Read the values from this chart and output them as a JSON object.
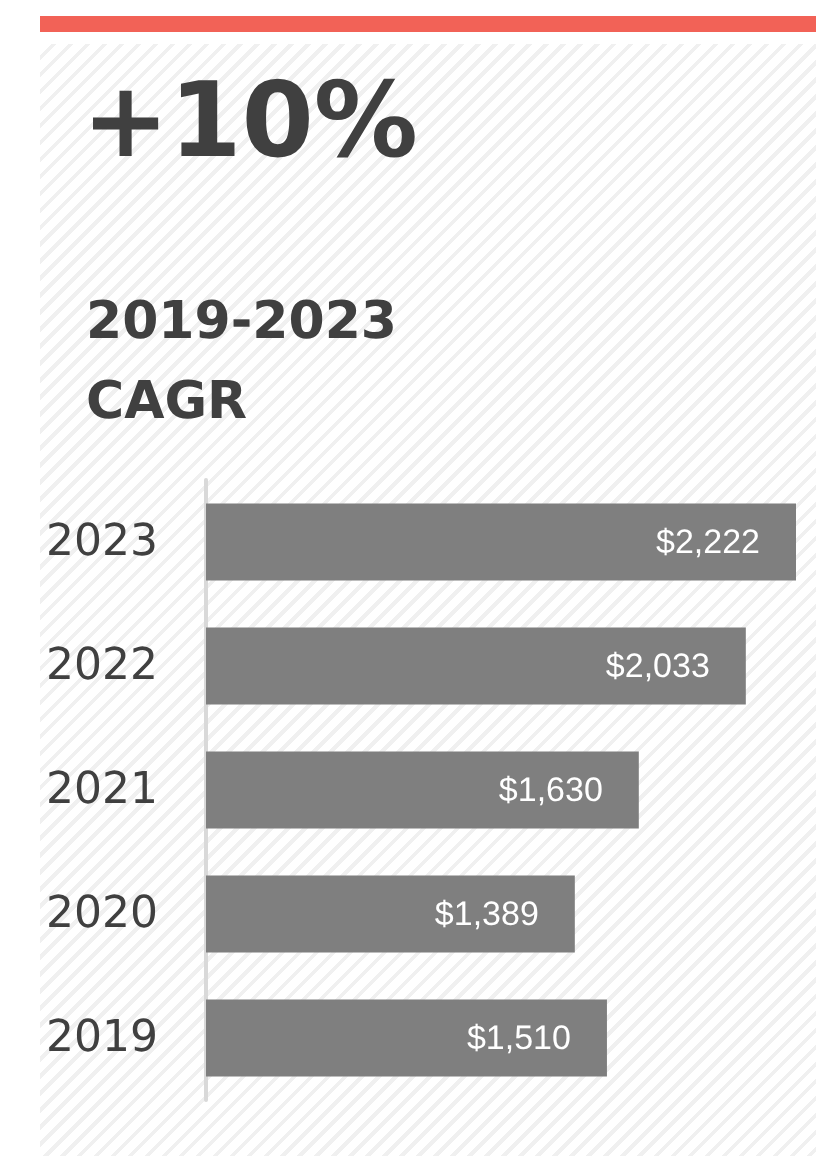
{
  "chart_data": {
    "type": "bar",
    "orientation": "horizontal",
    "title": "+10%",
    "subtitle": "2019-2023\nCAGR",
    "categories": [
      "2023",
      "2022",
      "2021",
      "2020",
      "2019"
    ],
    "values": [
      2222,
      2033,
      1630,
      1389,
      1510
    ],
    "value_labels": [
      "$2,222",
      "$2,033",
      "$1,630",
      "$1,389",
      "$1,510"
    ],
    "color": "#7f7f7f"
  }
}
